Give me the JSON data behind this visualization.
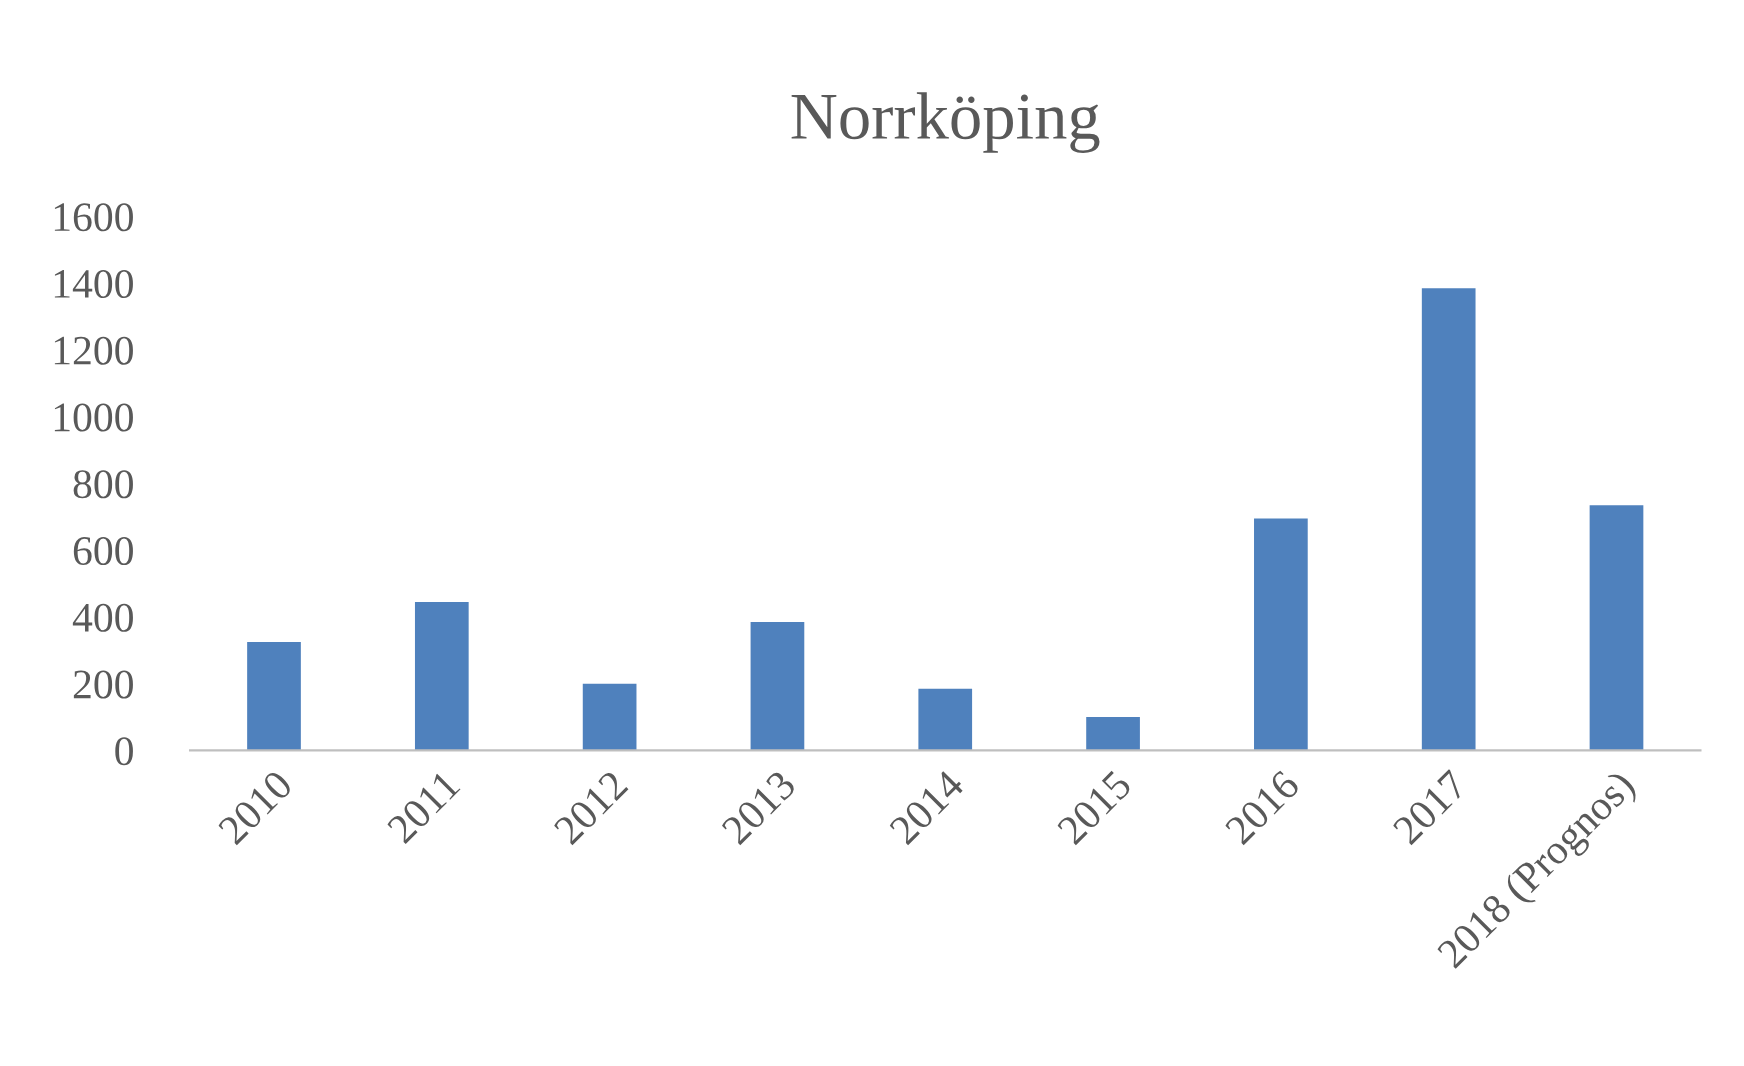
{
  "chart_data": {
    "type": "bar",
    "title": "Norrköping",
    "categories": [
      "2010",
      "2011",
      "2012",
      "2013",
      "2014",
      "2015",
      "2016",
      "2017",
      "2018 (Prognos)"
    ],
    "values": [
      325,
      445,
      200,
      385,
      185,
      100,
      695,
      1385,
      735
    ],
    "color": "#4f81bd",
    "ylim": [
      0,
      1600
    ],
    "yticks": [
      0,
      200,
      400,
      600,
      800,
      1000,
      1200,
      1400,
      1600
    ],
    "grid": false
  }
}
